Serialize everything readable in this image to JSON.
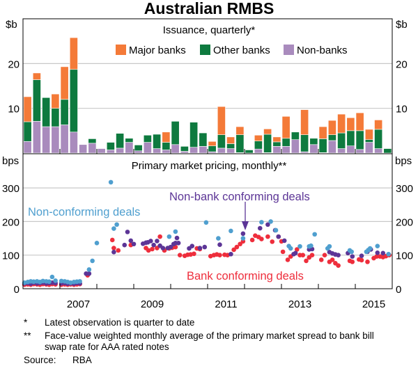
{
  "chart_data": [
    {
      "type": "bar",
      "stacked": true,
      "title": "Australian RMBS",
      "subtitle": "Issuance, quarterly*",
      "ylabel": "$b",
      "ylim": [
        0,
        27
      ],
      "yticks": [
        10,
        20
      ],
      "xlim": [
        2006,
        2016
      ],
      "xtick_labels": [
        "2007",
        "2009",
        "2011",
        "2013",
        "2015"
      ],
      "legend": "top-right",
      "categories_start": "2006 Q1",
      "categories_frequency": "quarterly",
      "series": [
        {
          "name": "Non-banks",
          "color": "#a98bbd",
          "values": [
            2.6,
            7.1,
            5.9,
            5.9,
            6.3,
            4.7,
            1.9,
            2.2,
            1.0,
            0.7,
            1.1,
            2.4,
            0.5,
            2.4,
            1.0,
            0.7,
            1.9,
            0.4,
            1.3,
            1.5,
            0.3,
            1.1,
            1.0,
            0.1,
            0,
            0.9,
            0.1,
            1.5,
            1.5,
            3.0,
            0.3,
            1.9,
            0.1,
            2.8,
            1.0,
            1.6,
            0.8,
            2.4,
            1.0,
            0
          ]
        },
        {
          "name": "Other banks",
          "color": "#0e7a3f",
          "values": [
            4.4,
            9.3,
            6.5,
            4.1,
            5.7,
            14.0,
            0,
            1.0,
            0,
            1.7,
            3.3,
            0.9,
            1.3,
            1.6,
            3.2,
            1.7,
            5.2,
            1.1,
            5.6,
            3.0,
            1.3,
            3.0,
            1.1,
            4.0,
            0.7,
            1.8,
            4.1,
            1.0,
            1.8,
            1.7,
            3.8,
            1.4,
            3.1,
            1.3,
            3.5,
            3.4,
            4.2,
            0.6,
            4.3,
            1.0
          ]
        },
        {
          "name": "Major banks",
          "color": "#f47a38",
          "values": [
            5.6,
            1.5,
            0,
            3.2,
            7.3,
            7.1,
            0,
            0,
            0,
            0,
            0,
            0,
            0,
            0,
            0,
            2.3,
            0,
            0,
            0,
            0,
            1.0,
            6.3,
            1.5,
            1.8,
            0,
            1.3,
            1.2,
            1.1,
            4.9,
            0,
            5.6,
            0,
            2.7,
            3.2,
            4.2,
            2.9,
            4.0,
            2.3,
            2.1,
            0
          ]
        }
      ]
    },
    {
      "type": "scatter",
      "subtitle": "Primary market pricing, monthly**",
      "ylabel": "bps",
      "ylim": [
        0,
        330
      ],
      "yticks": [
        0,
        100,
        200,
        300
      ],
      "xlim": [
        2006,
        2016
      ],
      "xtick_labels": [
        "2007",
        "2009",
        "2011",
        "2013",
        "2015"
      ],
      "series": [
        {
          "name": "Bank conforming deals",
          "color": "#ee2e3c",
          "points": [
            [
              2006.04,
              12
            ],
            [
              2006.13,
              13
            ],
            [
              2006.21,
              12
            ],
            [
              2006.29,
              14
            ],
            [
              2006.38,
              13
            ],
            [
              2006.46,
              12
            ],
            [
              2006.54,
              14
            ],
            [
              2006.63,
              13
            ],
            [
              2006.71,
              12
            ],
            [
              2006.79,
              14
            ],
            [
              2006.88,
              13
            ],
            [
              2007.04,
              12
            ],
            [
              2007.13,
              13
            ],
            [
              2007.21,
              12
            ],
            [
              2007.29,
              13
            ],
            [
              2007.38,
              12
            ],
            [
              2007.46,
              13
            ],
            [
              2007.54,
              14
            ],
            [
              2007.75,
              40
            ],
            [
              2008.42,
              145
            ],
            [
              2008.46,
              121
            ],
            [
              2008.58,
              114
            ],
            [
              2008.92,
              130
            ],
            [
              2009.33,
              121
            ],
            [
              2009.4,
              114
            ],
            [
              2009.5,
              118
            ],
            [
              2009.63,
              121
            ],
            [
              2009.71,
              155
            ],
            [
              2009.83,
              114
            ],
            [
              2009.96,
              120
            ],
            [
              2010.04,
              122
            ],
            [
              2010.13,
              124
            ],
            [
              2010.25,
              100
            ],
            [
              2010.38,
              98
            ],
            [
              2010.46,
              101
            ],
            [
              2010.54,
              102
            ],
            [
              2010.63,
              104
            ],
            [
              2010.71,
              120
            ],
            [
              2010.79,
              118
            ],
            [
              2011.08,
              97
            ],
            [
              2011.17,
              100
            ],
            [
              2011.25,
              102
            ],
            [
              2011.33,
              100
            ],
            [
              2011.46,
              101
            ],
            [
              2011.54,
              100
            ],
            [
              2011.71,
              116
            ],
            [
              2011.79,
              124
            ],
            [
              2011.88,
              133
            ],
            [
              2011.96,
              141
            ],
            [
              2012.21,
              145
            ],
            [
              2012.29,
              158
            ],
            [
              2012.38,
              154
            ],
            [
              2012.46,
              148
            ],
            [
              2012.63,
              155
            ],
            [
              2012.75,
              140
            ],
            [
              2012.92,
              155
            ],
            [
              2013.0,
              141
            ],
            [
              2013.04,
              110
            ],
            [
              2013.17,
              86
            ],
            [
              2013.25,
              96
            ],
            [
              2013.42,
              117
            ],
            [
              2013.5,
              100
            ],
            [
              2013.58,
              100
            ],
            [
              2013.67,
              83
            ],
            [
              2013.75,
              93
            ],
            [
              2013.83,
              100
            ],
            [
              2014.08,
              86
            ],
            [
              2014.17,
              100
            ],
            [
              2014.3,
              80
            ],
            [
              2014.38,
              86
            ],
            [
              2014.46,
              76
            ],
            [
              2014.54,
              69
            ],
            [
              2014.85,
              83
            ],
            [
              2014.92,
              80
            ],
            [
              2015.1,
              87
            ],
            [
              2015.17,
              85
            ],
            [
              2015.33,
              80
            ],
            [
              2015.5,
              91
            ],
            [
              2015.58,
              96
            ],
            [
              2015.67,
              96
            ],
            [
              2015.75,
              94
            ],
            [
              2015.83,
              97
            ],
            [
              2015.92,
              100
            ]
          ]
        },
        {
          "name": "Non-bank conforming deals",
          "color": "#5c3596",
          "points": [
            [
              2006.04,
              16
            ],
            [
              2006.13,
              17
            ],
            [
              2006.21,
              15
            ],
            [
              2006.29,
              18
            ],
            [
              2006.38,
              16
            ],
            [
              2006.46,
              17
            ],
            [
              2006.54,
              18
            ],
            [
              2006.63,
              16
            ],
            [
              2006.71,
              17
            ],
            [
              2006.79,
              18
            ],
            [
              2006.88,
              17
            ],
            [
              2007.04,
              16
            ],
            [
              2007.13,
              17
            ],
            [
              2007.21,
              15
            ],
            [
              2007.29,
              16
            ],
            [
              2007.38,
              15
            ],
            [
              2007.46,
              17
            ],
            [
              2007.54,
              16
            ],
            [
              2007.71,
              45
            ],
            [
              2007.79,
              45
            ],
            [
              2008.46,
              109
            ],
            [
              2008.75,
              130
            ],
            [
              2008.83,
              169
            ],
            [
              2008.92,
              143
            ],
            [
              2009.0,
              133
            ],
            [
              2009.25,
              134
            ],
            [
              2009.33,
              137
            ],
            [
              2009.38,
              138
            ],
            [
              2009.46,
              142
            ],
            [
              2009.54,
              130
            ],
            [
              2009.63,
              142
            ],
            [
              2009.71,
              128
            ],
            [
              2009.79,
              121
            ],
            [
              2009.92,
              121
            ],
            [
              2010.0,
              124
            ],
            [
              2010.08,
              133
            ],
            [
              2010.13,
              136
            ],
            [
              2010.21,
              136
            ],
            [
              2010.17,
              151
            ],
            [
              2010.5,
              120
            ],
            [
              2010.58,
              127
            ],
            [
              2010.79,
              121
            ],
            [
              2010.92,
              124
            ],
            [
              2011.33,
              131
            ],
            [
              2011.63,
              103
            ],
            [
              2011.96,
              164
            ],
            [
              2012.42,
              180
            ],
            [
              2012.63,
              191
            ],
            [
              2012.83,
              174
            ],
            [
              2012.92,
              155
            ],
            [
              2013.08,
              143
            ],
            [
              2013.33,
              103
            ],
            [
              2013.38,
              106
            ],
            [
              2013.75,
              117
            ],
            [
              2013.83,
              118
            ],
            [
              2014.3,
              109
            ],
            [
              2014.38,
              105
            ],
            [
              2014.46,
              102
            ],
            [
              2014.54,
              100
            ],
            [
              2014.8,
              106
            ],
            [
              2014.92,
              96
            ],
            [
              2015.17,
              98
            ],
            [
              2015.33,
              110
            ],
            [
              2015.42,
              117
            ],
            [
              2015.6,
              107
            ],
            [
              2015.75,
              106
            ]
          ]
        },
        {
          "name": "Non-conforming deals",
          "color": "#4f9fcf",
          "points": [
            [
              2006.04,
              18
            ],
            [
              2006.13,
              20
            ],
            [
              2006.21,
              22
            ],
            [
              2006.29,
              21
            ],
            [
              2006.38,
              22
            ],
            [
              2006.46,
              20
            ],
            [
              2006.54,
              23
            ],
            [
              2006.63,
              22
            ],
            [
              2006.71,
              21
            ],
            [
              2006.79,
              35
            ],
            [
              2006.88,
              24
            ],
            [
              2007.04,
              23
            ],
            [
              2007.13,
              22
            ],
            [
              2007.21,
              20
            ],
            [
              2007.29,
              18
            ],
            [
              2007.38,
              20
            ],
            [
              2007.46,
              21
            ],
            [
              2007.54,
              22
            ],
            [
              2007.79,
              57
            ],
            [
              2007.88,
              83
            ],
            [
              2008.0,
              136
            ],
            [
              2008.38,
              317
            ],
            [
              2008.46,
              179
            ],
            [
              2008.54,
              191
            ],
            [
              2009.96,
              155
            ],
            [
              2010.13,
              170
            ],
            [
              2010.96,
              197
            ],
            [
              2011.29,
              150
            ],
            [
              2011.63,
              172
            ],
            [
              2011.96,
              150
            ],
            [
              2012.46,
              198
            ],
            [
              2012.71,
              200
            ],
            [
              2012.85,
              174
            ],
            [
              2013.2,
              127
            ],
            [
              2013.25,
              120
            ],
            [
              2013.5,
              126
            ],
            [
              2013.75,
              126
            ],
            [
              2013.8,
              128
            ],
            [
              2013.9,
              162
            ],
            [
              2014.25,
              120
            ],
            [
              2014.3,
              126
            ],
            [
              2014.85,
              114
            ],
            [
              2014.9,
              110
            ],
            [
              2015.3,
              110
            ],
            [
              2015.35,
              115
            ],
            [
              2015.4,
              120
            ],
            [
              2015.6,
              127
            ],
            [
              2015.9,
              103
            ]
          ]
        }
      ],
      "annotations": [
        "Non-conforming deals",
        "Non-bank conforming deals",
        "Bank conforming deals"
      ]
    }
  ],
  "labels": {
    "title": "Australian RMBS",
    "top_subtitle": "Issuance, quarterly*",
    "bottom_subtitle": "Primary market pricing, monthly**",
    "top_unit": "$b",
    "bottom_unit": "bps",
    "top_yticks": [
      "10",
      "20"
    ],
    "bottom_yticks": [
      "0",
      "100",
      "200",
      "300"
    ],
    "xticks": [
      "2007",
      "2009",
      "2011",
      "2013",
      "2015"
    ],
    "legend": [
      "Major banks",
      "Other banks",
      "Non-banks"
    ],
    "ann_nonconf": "Non-conforming deals",
    "ann_nonbank": "Non-bank conforming deals",
    "ann_bank": "Bank conforming deals"
  },
  "notes": [
    {
      "mark": "*",
      "text": "Latest observation is quarter to date"
    },
    {
      "mark": "**",
      "text": "Face-value weighted monthly average of the primary market spread to bank bill swap rate for AAA rated notes"
    }
  ],
  "source": {
    "label": "Source:",
    "text": "RBA"
  }
}
